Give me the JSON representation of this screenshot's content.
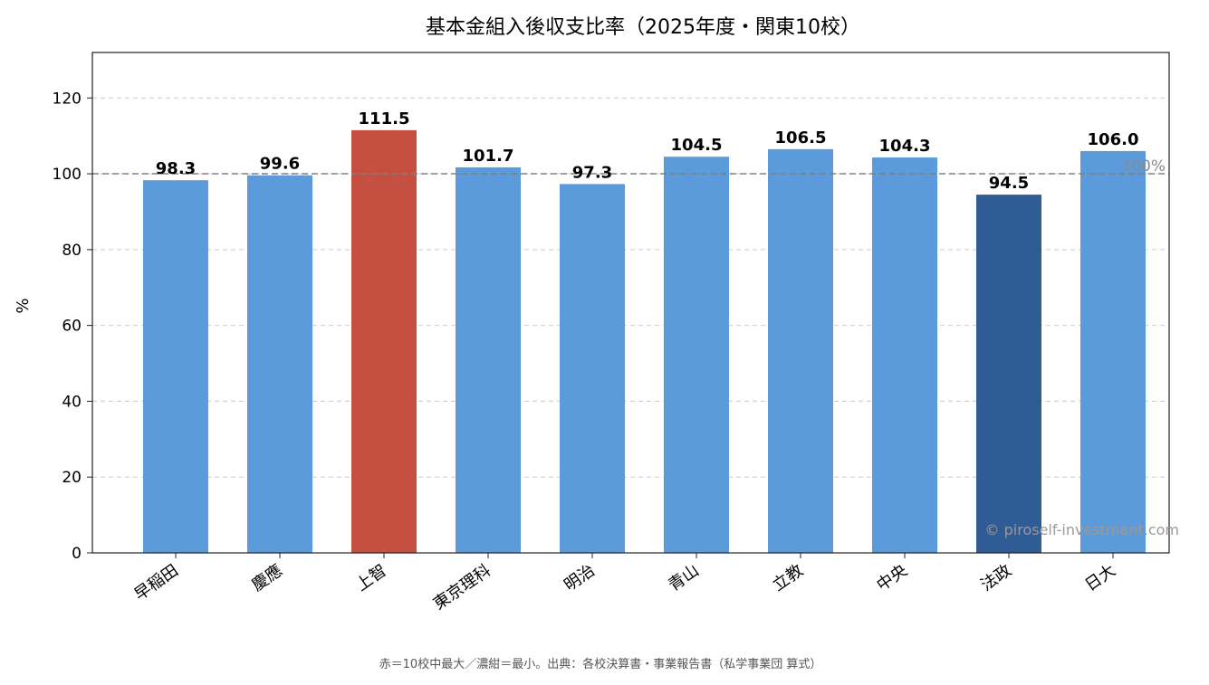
{
  "chart_data": {
    "type": "bar",
    "title": "基本金組入後収支比率（2025年度・関東10校）",
    "ylabel": "%",
    "xlabel": "",
    "ylim": [
      0,
      132
    ],
    "yticks": [
      0,
      20,
      40,
      60,
      80,
      100,
      120
    ],
    "categories": [
      "早稲田",
      "慶應",
      "上智",
      "東京理科",
      "明治",
      "青山",
      "立教",
      "中央",
      "法政",
      "日大"
    ],
    "values": [
      98.3,
      99.6,
      111.5,
      101.7,
      97.3,
      104.5,
      106.5,
      104.3,
      94.5,
      106.0
    ],
    "value_labels": [
      "98.3",
      "99.6",
      "111.5",
      "101.7",
      "97.3",
      "104.5",
      "106.5",
      "104.3",
      "94.5",
      "106.0"
    ],
    "bar_colors": [
      "#5b9bdb",
      "#5b9bdb",
      "#c54f40",
      "#5b9bdb",
      "#5b9bdb",
      "#5b9bdb",
      "#5b9bdb",
      "#5b9bdb",
      "#305c96",
      "#5b9bdb"
    ],
    "reference_line": {
      "value": 100,
      "label": "100%",
      "color": "#808080",
      "style": "dashed"
    },
    "grid": {
      "y": true,
      "style": "dashed",
      "color": "#cccccc"
    },
    "legend": null,
    "watermark": "© piroself-investment.com",
    "footnote": "赤＝10校中最大／濃紺＝最小。出典：各校決算書・事業報告書（私学事業団 算式）"
  }
}
